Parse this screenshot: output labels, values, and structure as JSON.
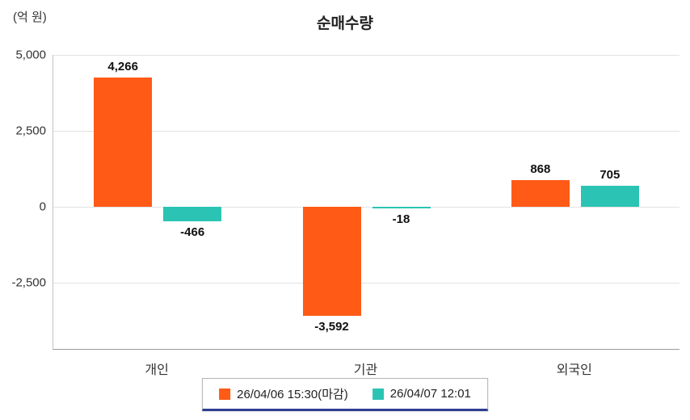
{
  "chart_data": {
    "type": "bar",
    "title": "순매수량",
    "unit_label": "(억 원)",
    "categories": [
      "개인",
      "기관",
      "외국인"
    ],
    "series": [
      {
        "name": "26/04/06 15:30(마감)",
        "color": "#FF5A16",
        "values": [
          4266,
          -3592,
          868
        ],
        "labels": [
          "4,266",
          "-3,592",
          "868"
        ]
      },
      {
        "name": "26/04/07 12:01",
        "color": "#2BC4B4",
        "values": [
          -466,
          -18,
          705
        ],
        "labels": [
          "-466",
          "-18",
          "705"
        ]
      }
    ],
    "yticks": [
      {
        "value": 5000,
        "label": "5,000"
      },
      {
        "value": 2500,
        "label": "2,500"
      },
      {
        "value": 0,
        "label": "0"
      },
      {
        "value": -2500,
        "label": "-2,500"
      }
    ],
    "ylim": [
      -4680,
      5000
    ],
    "grid": true,
    "legend_position": "bottom",
    "legend_border_color": "#b5b5b5",
    "legend_underline_color": "#2E3E92"
  }
}
